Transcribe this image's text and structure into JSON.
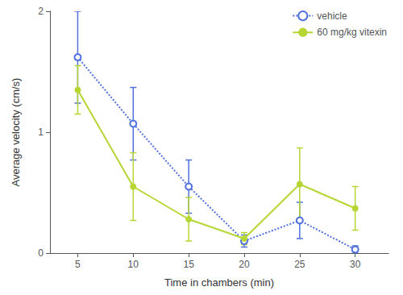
{
  "chart_data": {
    "type": "line",
    "x": [
      5,
      10,
      15,
      20,
      25,
      30
    ],
    "xlabel": "Time in chambers (min)",
    "ylabel": "Average velocity (cm/s)",
    "xlim": [
      2.5,
      33
    ],
    "ylim": [
      0,
      2.0
    ],
    "xticks": [
      5,
      10,
      15,
      20,
      25,
      30
    ],
    "yticks": [
      0,
      1,
      2
    ],
    "grid": false,
    "legend": "upper right",
    "series": [
      {
        "name": "vehicle",
        "values": [
          1.62,
          1.07,
          0.55,
          0.1,
          0.27,
          0.03
        ],
        "errors": [
          0.38,
          0.3,
          0.22,
          0.05,
          0.15,
          0.03
        ],
        "marker": "open_circle",
        "line_style": "dotted"
      },
      {
        "name": "60 mg/kg vitexin",
        "values": [
          1.35,
          0.55,
          0.28,
          0.12,
          0.57,
          0.37
        ],
        "errors": [
          0.2,
          0.28,
          0.18,
          0.05,
          0.3,
          0.18
        ],
        "marker": "circle",
        "line_style": "solid"
      }
    ]
  }
}
